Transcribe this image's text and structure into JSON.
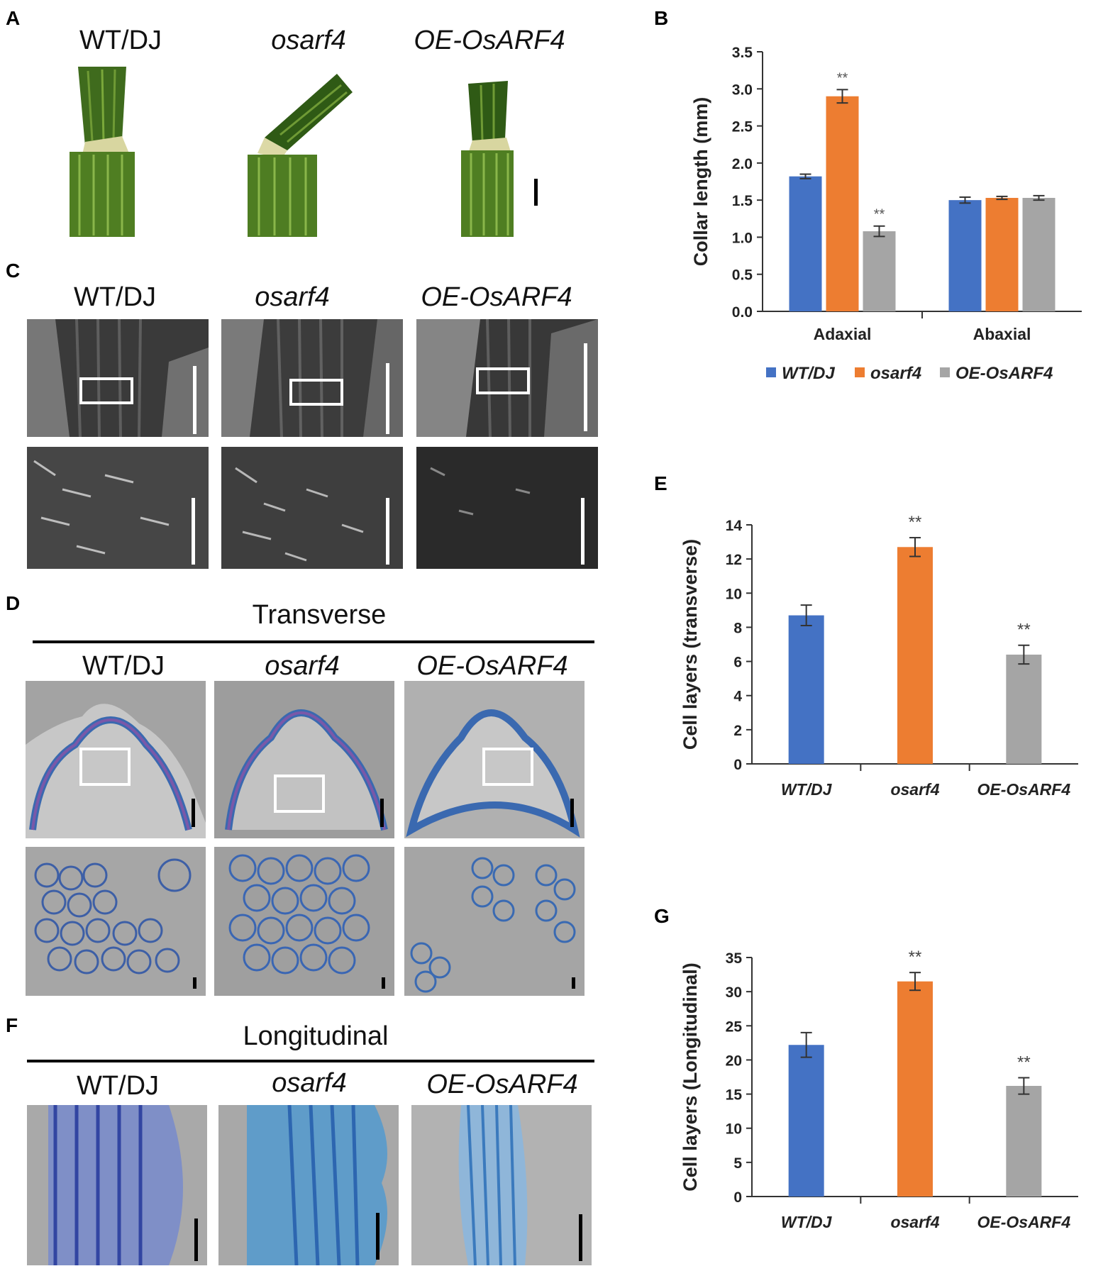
{
  "panel_labels": {
    "A": "A",
    "B": "B",
    "C": "C",
    "D": "D",
    "E": "E",
    "F": "F",
    "G": "G"
  },
  "genotypes": {
    "wt": "WT/DJ",
    "mutant": "osarf4",
    "oe": "OE-OsARF4"
  },
  "sections": {
    "transverse": "Transverse",
    "longitudinal": "Longitudinal"
  },
  "colors": {
    "wt": "#4472C4",
    "mutant": "#ED7D31",
    "oe": "#A5A5A5"
  },
  "chart_data": [
    {
      "id": "B",
      "type": "bar",
      "categories": [
        "Adaxial",
        "Abaxial"
      ],
      "series": [
        {
          "name": "WT/DJ",
          "values": [
            1.82,
            1.5
          ],
          "errors": [
            0.03,
            0.04
          ],
          "marks": [
            "",
            ""
          ]
        },
        {
          "name": "osarf4",
          "values": [
            2.9,
            1.53
          ],
          "errors": [
            0.09,
            0.02
          ],
          "marks": [
            "**",
            ""
          ]
        },
        {
          "name": "OE-OsARF4",
          "values": [
            1.08,
            1.53
          ],
          "errors": [
            0.07,
            0.03
          ],
          "marks": [
            "**",
            ""
          ]
        }
      ],
      "ylabel": "Collar length (mm)",
      "xlabel": "",
      "ylim": [
        0,
        3.5
      ],
      "yticks": [
        "0.0",
        "0.5",
        "1.0",
        "1.5",
        "2.0",
        "2.5",
        "3.0",
        "3.5"
      ],
      "legend": "bottom",
      "grid": false
    },
    {
      "id": "E",
      "type": "bar",
      "categories": [
        "WT/DJ",
        "osarf4",
        "OE-OsARF4"
      ],
      "values": [
        8.7,
        12.7,
        6.4
      ],
      "errors": [
        0.6,
        0.55,
        0.55
      ],
      "marks": [
        "",
        "**",
        "**"
      ],
      "ylabel": "Cell layers (transverse)",
      "xlabel": "",
      "ylim": [
        0,
        14
      ],
      "yticks": [
        "0",
        "2",
        "4",
        "6",
        "8",
        "10",
        "12",
        "14"
      ],
      "grid": false
    },
    {
      "id": "G",
      "type": "bar",
      "categories": [
        "WT/DJ",
        "osarf4",
        "OE-OsARF4"
      ],
      "values": [
        22.2,
        31.5,
        16.2
      ],
      "errors": [
        1.8,
        1.3,
        1.2
      ],
      "marks": [
        "",
        "**",
        "**"
      ],
      "ylabel": "Cell layers (Longitudinal)",
      "xlabel": "",
      "ylim": [
        0,
        35
      ],
      "yticks": [
        "0",
        "5",
        "10",
        "15",
        "20",
        "25",
        "30",
        "35"
      ],
      "grid": false
    }
  ]
}
